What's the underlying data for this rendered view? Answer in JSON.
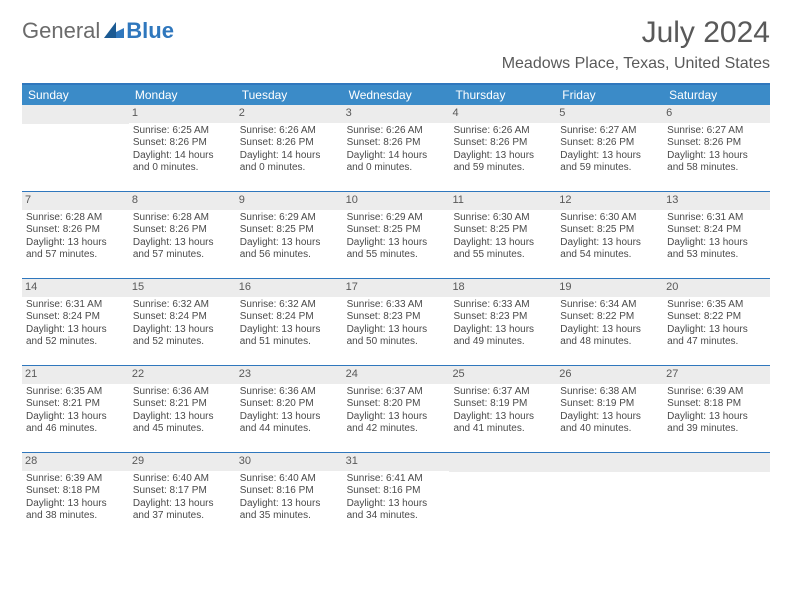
{
  "brand": {
    "part1": "General",
    "part2": "Blue",
    "accent": "#2f77bd",
    "text_gray": "#6b6b6b"
  },
  "title": "July 2024",
  "location": "Meadows Place, Texas, United States",
  "colors": {
    "header_bar": "#3b8bc8",
    "top_rule": "#2f77bd",
    "week_rule": "#2f77bd",
    "daynum_bg": "#ececec",
    "text": "#4a4a4a"
  },
  "weekdays": [
    "Sunday",
    "Monday",
    "Tuesday",
    "Wednesday",
    "Thursday",
    "Friday",
    "Saturday"
  ],
  "weeks": [
    [
      null,
      {
        "n": "1",
        "sr": "6:25 AM",
        "ss": "8:26 PM",
        "dl": "14 hours and 0 minutes."
      },
      {
        "n": "2",
        "sr": "6:26 AM",
        "ss": "8:26 PM",
        "dl": "14 hours and 0 minutes."
      },
      {
        "n": "3",
        "sr": "6:26 AM",
        "ss": "8:26 PM",
        "dl": "14 hours and 0 minutes."
      },
      {
        "n": "4",
        "sr": "6:26 AM",
        "ss": "8:26 PM",
        "dl": "13 hours and 59 minutes."
      },
      {
        "n": "5",
        "sr": "6:27 AM",
        "ss": "8:26 PM",
        "dl": "13 hours and 59 minutes."
      },
      {
        "n": "6",
        "sr": "6:27 AM",
        "ss": "8:26 PM",
        "dl": "13 hours and 58 minutes."
      }
    ],
    [
      {
        "n": "7",
        "sr": "6:28 AM",
        "ss": "8:26 PM",
        "dl": "13 hours and 57 minutes."
      },
      {
        "n": "8",
        "sr": "6:28 AM",
        "ss": "8:26 PM",
        "dl": "13 hours and 57 minutes."
      },
      {
        "n": "9",
        "sr": "6:29 AM",
        "ss": "8:25 PM",
        "dl": "13 hours and 56 minutes."
      },
      {
        "n": "10",
        "sr": "6:29 AM",
        "ss": "8:25 PM",
        "dl": "13 hours and 55 minutes."
      },
      {
        "n": "11",
        "sr": "6:30 AM",
        "ss": "8:25 PM",
        "dl": "13 hours and 55 minutes."
      },
      {
        "n": "12",
        "sr": "6:30 AM",
        "ss": "8:25 PM",
        "dl": "13 hours and 54 minutes."
      },
      {
        "n": "13",
        "sr": "6:31 AM",
        "ss": "8:24 PM",
        "dl": "13 hours and 53 minutes."
      }
    ],
    [
      {
        "n": "14",
        "sr": "6:31 AM",
        "ss": "8:24 PM",
        "dl": "13 hours and 52 minutes."
      },
      {
        "n": "15",
        "sr": "6:32 AM",
        "ss": "8:24 PM",
        "dl": "13 hours and 52 minutes."
      },
      {
        "n": "16",
        "sr": "6:32 AM",
        "ss": "8:24 PM",
        "dl": "13 hours and 51 minutes."
      },
      {
        "n": "17",
        "sr": "6:33 AM",
        "ss": "8:23 PM",
        "dl": "13 hours and 50 minutes."
      },
      {
        "n": "18",
        "sr": "6:33 AM",
        "ss": "8:23 PM",
        "dl": "13 hours and 49 minutes."
      },
      {
        "n": "19",
        "sr": "6:34 AM",
        "ss": "8:22 PM",
        "dl": "13 hours and 48 minutes."
      },
      {
        "n": "20",
        "sr": "6:35 AM",
        "ss": "8:22 PM",
        "dl": "13 hours and 47 minutes."
      }
    ],
    [
      {
        "n": "21",
        "sr": "6:35 AM",
        "ss": "8:21 PM",
        "dl": "13 hours and 46 minutes."
      },
      {
        "n": "22",
        "sr": "6:36 AM",
        "ss": "8:21 PM",
        "dl": "13 hours and 45 minutes."
      },
      {
        "n": "23",
        "sr": "6:36 AM",
        "ss": "8:20 PM",
        "dl": "13 hours and 44 minutes."
      },
      {
        "n": "24",
        "sr": "6:37 AM",
        "ss": "8:20 PM",
        "dl": "13 hours and 42 minutes."
      },
      {
        "n": "25",
        "sr": "6:37 AM",
        "ss": "8:19 PM",
        "dl": "13 hours and 41 minutes."
      },
      {
        "n": "26",
        "sr": "6:38 AM",
        "ss": "8:19 PM",
        "dl": "13 hours and 40 minutes."
      },
      {
        "n": "27",
        "sr": "6:39 AM",
        "ss": "8:18 PM",
        "dl": "13 hours and 39 minutes."
      }
    ],
    [
      {
        "n": "28",
        "sr": "6:39 AM",
        "ss": "8:18 PM",
        "dl": "13 hours and 38 minutes."
      },
      {
        "n": "29",
        "sr": "6:40 AM",
        "ss": "8:17 PM",
        "dl": "13 hours and 37 minutes."
      },
      {
        "n": "30",
        "sr": "6:40 AM",
        "ss": "8:16 PM",
        "dl": "13 hours and 35 minutes."
      },
      {
        "n": "31",
        "sr": "6:41 AM",
        "ss": "8:16 PM",
        "dl": "13 hours and 34 minutes."
      },
      null,
      null,
      null
    ]
  ],
  "labels": {
    "sunrise": "Sunrise: ",
    "sunset": "Sunset: ",
    "daylight": "Daylight: "
  }
}
